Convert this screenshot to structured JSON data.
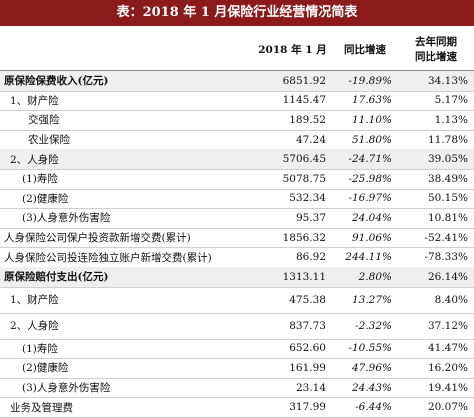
{
  "header": {
    "title": "表：2018 年 1 月保险行业经营情况简表"
  },
  "table": {
    "columns": [
      "2018 年 1 月",
      "同比增速",
      [
        "去年同期",
        "同比增速"
      ]
    ],
    "rows": [
      [
        "原保险保费收入(亿元)",
        "6851.92",
        "-19.89%",
        "34.13%"
      ],
      [
        "1、财产险",
        "1145.47",
        "17.63%",
        "5.17%"
      ],
      [
        "交强险",
        "189.52",
        "11.10%",
        "1.13%"
      ],
      [
        "农业保险",
        "47.24",
        "51.80%",
        "11.78%"
      ],
      [
        "2、人身险",
        "5706.45",
        "-24.71%",
        "39.05%"
      ],
      [
        "(1)寿险",
        "5078.75",
        "-25.98%",
        "38.49%"
      ],
      [
        "(2)健康险",
        "532.34",
        "-16.97%",
        "50.15%"
      ],
      [
        "(3)人身意外伤害险",
        "95.37",
        "24.04%",
        "10.81%"
      ],
      [
        "人身保险公司保户投资款新增交费(累计)",
        "1856.32",
        "91.06%",
        "-52.41%"
      ],
      [
        "人身保险公司投连险独立账户新增交费(累计)",
        "86.92",
        "244.11%",
        "-78.33%"
      ],
      [
        "原保险赔付支出(亿元)",
        "1313.11",
        "2.80%",
        "26.14%"
      ],
      [
        "1、财产险",
        "475.38",
        "13.27%",
        "8.40%"
      ],
      [
        "2、人身险",
        "837.73",
        "-2.32%",
        "37.12%"
      ],
      [
        "(1)寿险",
        "652.60",
        "-10.55%",
        "41.47%"
      ],
      [
        "(2)健康险",
        "161.99",
        "47.96%",
        "16.20%"
      ],
      [
        "(3)人身意外伤害险",
        "23.14",
        "24.43%",
        "19.41%"
      ],
      [
        "业务及管理费",
        "317.99",
        "-6.44%",
        "20.07%"
      ]
    ]
  }
}
